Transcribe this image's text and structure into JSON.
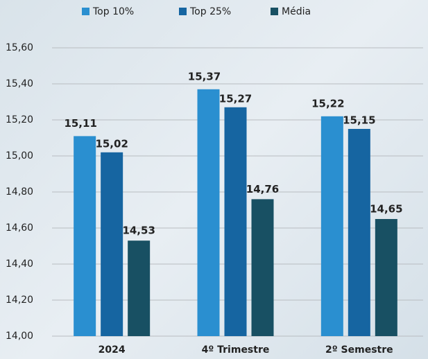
{
  "chart_data": {
    "type": "bar",
    "categories": [
      "2024",
      "4º Trimestre",
      "2º Semestre"
    ],
    "series": [
      {
        "name": "Top 10%",
        "color": "#2a8fd0",
        "values": [
          15.11,
          15.37,
          15.22
        ],
        "value_labels": [
          "15,11",
          "15,37",
          "15,22"
        ]
      },
      {
        "name": "Top 25%",
        "color": "#1665a1",
        "values": [
          15.02,
          15.27,
          15.15
        ],
        "value_labels": [
          "15,02",
          "15,27",
          "15,15"
        ]
      },
      {
        "name": "Média",
        "color": "#185063",
        "values": [
          14.53,
          14.76,
          14.65
        ],
        "value_labels": [
          "14,53",
          "14,76",
          "14,65"
        ]
      }
    ],
    "ylim": [
      14,
      15.6
    ],
    "yticks": [
      {
        "value": 14,
        "label": "14,00"
      },
      {
        "value": 14.2,
        "label": "14,20"
      },
      {
        "value": 14.4,
        "label": "14,40"
      },
      {
        "value": 14.6,
        "label": "14,60"
      },
      {
        "value": 14.8,
        "label": "14,80"
      },
      {
        "value": 15,
        "label": "15,00"
      },
      {
        "value": 15.2,
        "label": "15,20"
      },
      {
        "value": 15.4,
        "label": "15,40"
      },
      {
        "value": 15.6,
        "label": "15,60"
      }
    ],
    "grid": true
  }
}
